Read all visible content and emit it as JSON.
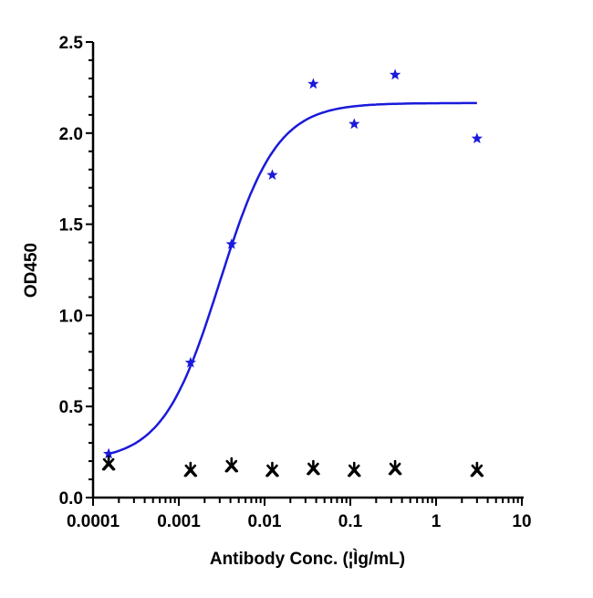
{
  "chart_data": {
    "type": "scatter",
    "title": "",
    "xlabel": "Antibody Conc. (¦Ìg/mL)",
    "ylabel": "OD450",
    "xscale": "log",
    "xlim": [
      0.0001,
      10
    ],
    "ylim": [
      0,
      2.5
    ],
    "xticks": [
      0.0001,
      0.001,
      0.01,
      0.1,
      1,
      10
    ],
    "xtick_labels": [
      "0.0001",
      "0.001",
      "0.01",
      "0.1",
      "1",
      "10"
    ],
    "yticks": [
      0,
      0.5,
      1,
      1.5,
      2,
      2.5
    ],
    "ytick_labels": [
      "0.0",
      "0.5",
      "1.0",
      "1.5",
      "2.0",
      "2.5"
    ],
    "grid": false,
    "legend": "none",
    "series": [
      {
        "color": "#1a1adb",
        "marker": "star",
        "x": [
          0.000152,
          0.00137,
          0.00412,
          0.0123,
          0.037,
          0.111,
          0.333,
          3
        ],
        "y": [
          0.24,
          0.74,
          1.39,
          1.77,
          2.27,
          2.05,
          2.32,
          1.97
        ],
        "fit": {
          "model": "4PL",
          "bottom": 0.2,
          "top": 2.165,
          "ec50": 0.003,
          "hill": 1.3,
          "color": "#1a1adb"
        }
      },
      {
        "color": "#000000",
        "marker": "asterisk",
        "x": [
          0.000152,
          0.00137,
          0.00412,
          0.0123,
          0.037,
          0.111,
          0.333,
          3
        ],
        "y": [
          0.185,
          0.15,
          0.175,
          0.15,
          0.16,
          0.15,
          0.16,
          0.15
        ]
      }
    ]
  }
}
